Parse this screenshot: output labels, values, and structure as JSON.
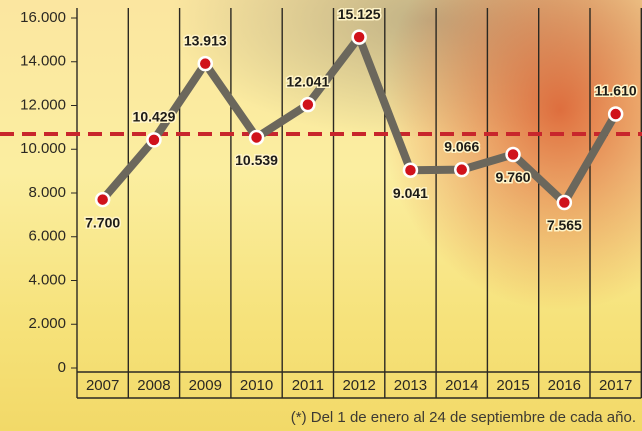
{
  "chart_data": {
    "type": "line",
    "categories": [
      "2007",
      "2008",
      "2009",
      "2010",
      "2011",
      "2012",
      "2013",
      "2014",
      "2015",
      "2016",
      "2017"
    ],
    "values": [
      7700,
      10429,
      13913,
      10539,
      12041,
      15125,
      9041,
      9066,
      9760,
      7565,
      11610
    ],
    "value_labels": [
      "7.700",
      "10.429",
      "13.913",
      "10.539",
      "12.041",
      "15.125",
      "9.041",
      "9.066",
      "9.760",
      "7.565",
      "11.610"
    ],
    "color": "#6b675c",
    "marker_color": "#d0121b",
    "ylim": [
      0,
      16000
    ],
    "yticks": [
      0,
      {
        "value": 2000,
        "label": "2.000"
      },
      {
        "value": 4000,
        "label": "4.000"
      },
      {
        "value": 6000,
        "label": "6.000"
      },
      {
        "value": 8000,
        "label": "8.000"
      },
      {
        "value": 10000,
        "label": "10.000"
      },
      {
        "value": 12000,
        "label": "12.000"
      },
      {
        "value": 14000,
        "label": "14.000"
      },
      {
        "value": 16000,
        "label": "16.000"
      }
    ],
    "average_line": {
      "value": 10700,
      "color": "#c8262c"
    },
    "note": "(*) Del 1 de enero al 24 de septiembre de cada año."
  }
}
